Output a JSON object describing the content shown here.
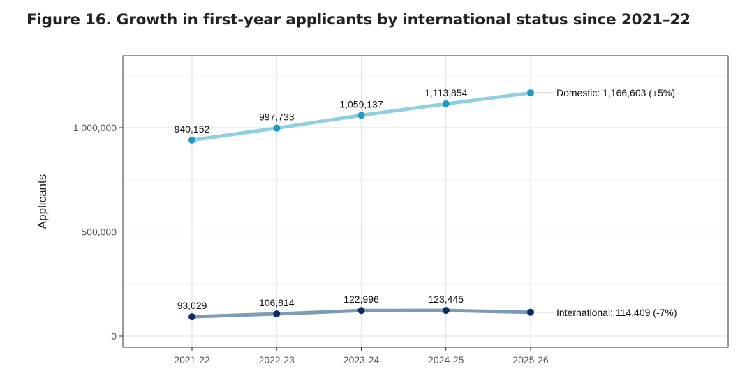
{
  "figure_title": "Figure 16. Growth in first-year applicants by international status since 2021–22",
  "chart_data": {
    "type": "line",
    "title": "Figure 16. Growth in first-year applicants by international status since 2021–22",
    "xlabel": "",
    "ylabel": "Applicants",
    "categories": [
      "2021-22",
      "2022-23",
      "2023-24",
      "2024-25",
      "2025-26"
    ],
    "ylim": [
      0,
      1250000
    ],
    "yticks": [
      0,
      500000,
      1000000
    ],
    "ytick_labels": [
      "0",
      "500,000",
      "1,000,000"
    ],
    "grid": true,
    "legend": "none (direct end labels)",
    "series": [
      {
        "name": "Domestic",
        "values": [
          940152,
          997733,
          1059137,
          1113854,
          1166603
        ],
        "point_labels": [
          "940,152",
          "997,733",
          "1,059,137",
          "1,113,854"
        ],
        "end_label": "Domestic: 1,166,603 (+5%)",
        "line_color": "#8ecfe2",
        "point_color": "#1d9ac6"
      },
      {
        "name": "International",
        "values": [
          93029,
          106814,
          122996,
          123445,
          114409
        ],
        "point_labels": [
          "93,029",
          "106,814",
          "122,996",
          "123,445"
        ],
        "end_label": "International: 114,409 (-7%)",
        "line_color": "#7f9ab6",
        "point_color": "#0b2d63"
      }
    ]
  }
}
